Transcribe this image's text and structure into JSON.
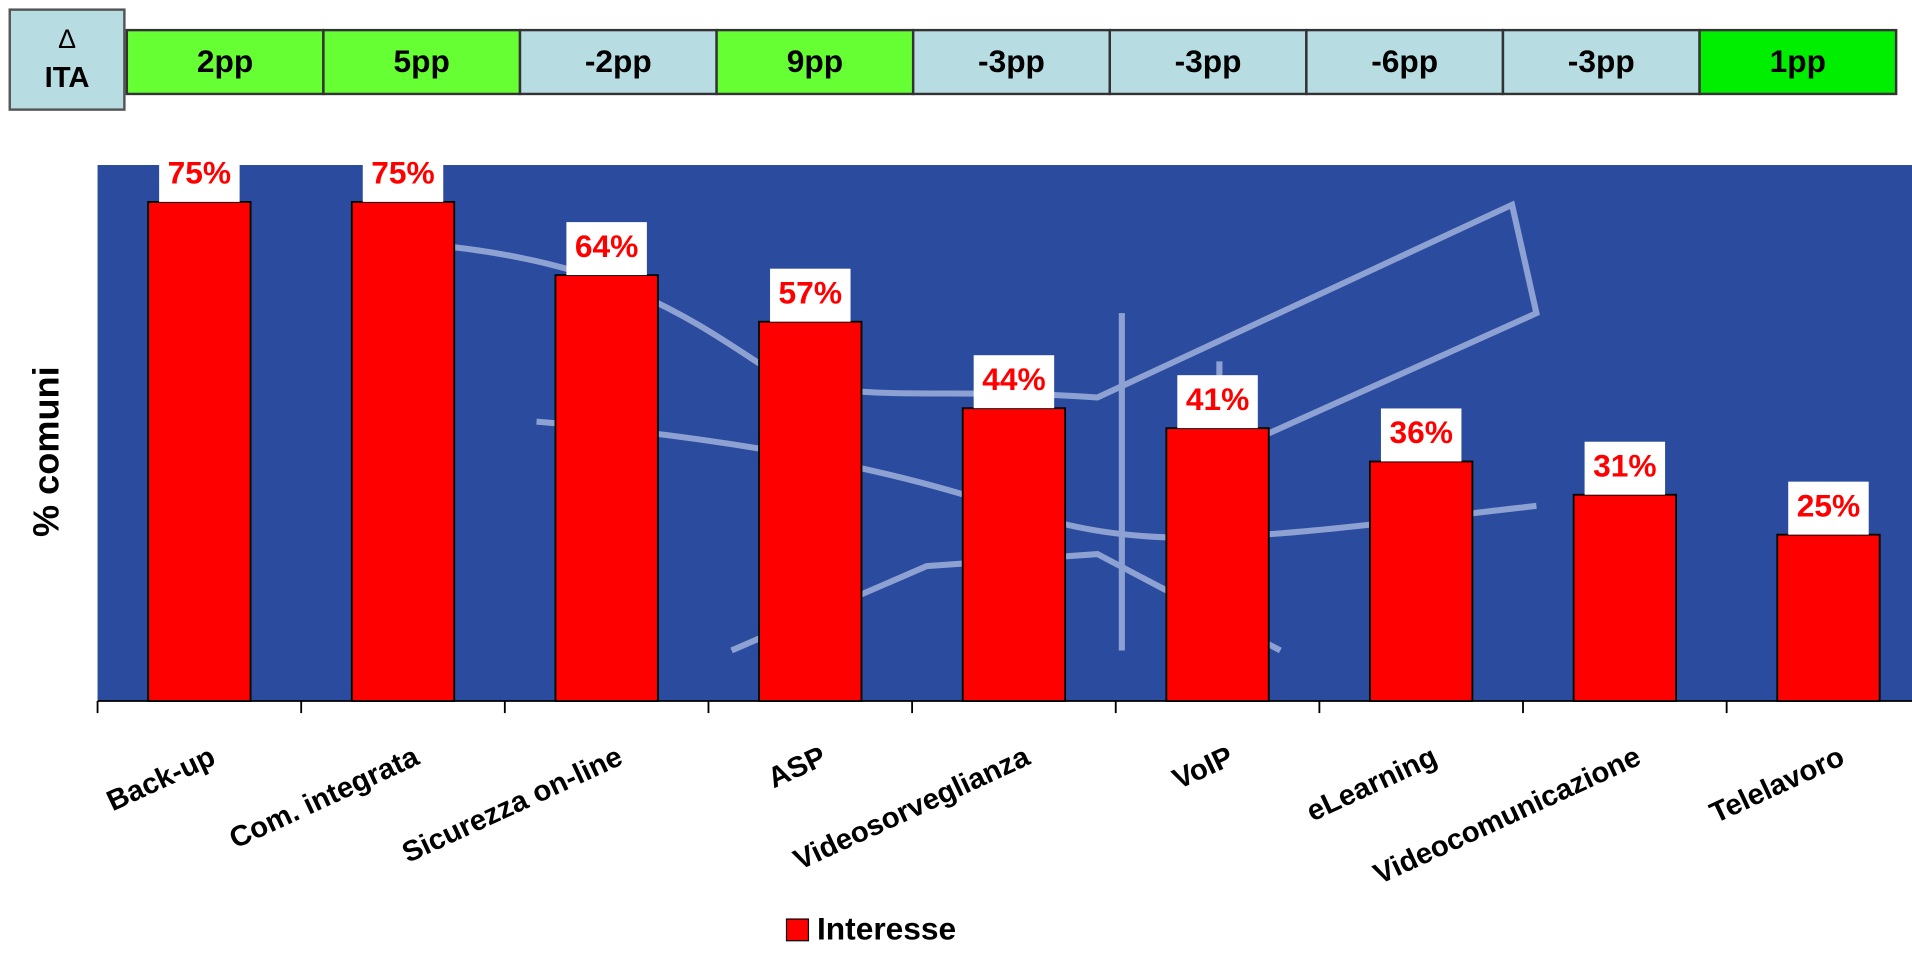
{
  "delta_row": {
    "header": [
      "Δ",
      "ITA"
    ],
    "values": [
      2,
      5,
      -2,
      9,
      -3,
      -3,
      -6,
      -3,
      1
    ],
    "value_labels": [
      "2pp",
      "5pp",
      "-2pp",
      "9pp",
      "-3pp",
      "-3pp",
      "-6pp",
      "-3pp",
      "1pp"
    ],
    "colors": [
      "#66ff33",
      "#66ff33",
      "#b7dde3",
      "#66ff33",
      "#b7dde3",
      "#b7dde3",
      "#b7dde3",
      "#b7dde3",
      "#00ee00"
    ]
  },
  "chart_data": {
    "type": "bar",
    "y_label": "% comuni",
    "categories": [
      "Back-up",
      "Com. integrata",
      "Sicurezza on-line",
      "ASP",
      "Videosorveglianza",
      "VoIP",
      "eLearning",
      "Videocomunicazione",
      "Telelavoro"
    ],
    "series": [
      {
        "name": "Interesse",
        "color": "#ff0000",
        "values": [
          75,
          75,
          64,
          57,
          44,
          41,
          36,
          31,
          25
        ],
        "value_labels": [
          "75%",
          "75%",
          "64%",
          "57%",
          "44%",
          "41%",
          "36%",
          "31%",
          "25%"
        ]
      }
    ],
    "ylim": [
      0,
      80
    ]
  }
}
